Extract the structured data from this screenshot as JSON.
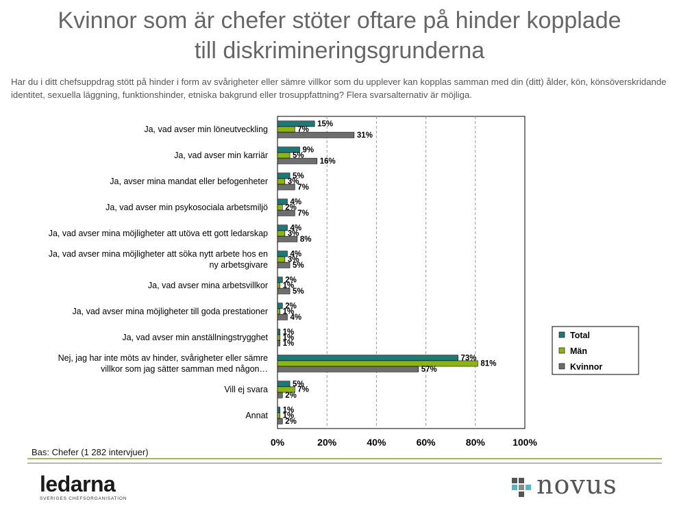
{
  "title": {
    "line1": "Kvinnor som är chefer stöter oftare på hinder kopplade",
    "line2": "till diskrimineringsgrunderna"
  },
  "subtitle": "Har du i ditt chefsuppdrag stött på hinder i form av svårigheter eller sämre villkor som du upplever kan kopplas samman med din (ditt) ålder, kön, könsöverskridande identitet, sexuella läggning, funktionshinder, etniska bakgrund eller trosuppfattning? Flera svarsalternativ är möjliga.",
  "footer": {
    "base": "Bas: Chefer (1 282 intervjuer)",
    "logo_left": "ledarna",
    "logo_left_tagline": "SVERIGES CHEFSORGANISATION",
    "logo_right": "novus"
  },
  "colors": {
    "total": "#1b7a78",
    "man": "#8cb412",
    "kvinnor": "#6e6e6e",
    "logo_sq1": "#555555",
    "logo_sq2": "#55b6c2",
    "logo_sq3": "#8a8a8a"
  },
  "chart_data": {
    "type": "bar",
    "orientation": "horizontal",
    "categories": [
      "Ja, vad avser min löneutveckling",
      "Ja, vad avser min karriär",
      "Ja, avser mina mandat eller befogenheter",
      "Ja, vad avser min psykosociala arbetsmiljö",
      "Ja, vad avser mina möjligheter att utöva ett gott ledarskap",
      "Ja, vad avser mina möjligheter att söka nytt arbete hos en ny arbetsgivare",
      "Ja, vad avser mina arbetsvillkor",
      "Ja, vad avser mina möjligheter till goda prestationer",
      "Ja, vad avser min anställningstrygghet",
      "Nej, jag har inte möts av hinder, svårigheter eller sämre villkor som jag sätter samman med någon…",
      "Vill ej svara",
      "Annat"
    ],
    "category_lines": [
      [
        "Ja, vad avser min löneutveckling"
      ],
      [
        "Ja, vad avser min karriär"
      ],
      [
        "Ja, avser mina mandat eller befogenheter"
      ],
      [
        "Ja, vad avser min psykosociala arbetsmiljö"
      ],
      [
        "Ja, vad avser mina möjligheter att utöva ett gott ledarskap"
      ],
      [
        "Ja, vad avser mina möjligheter att söka nytt arbete hos en",
        "ny arbetsgivare"
      ],
      [
        "Ja, vad avser mina arbetsvillkor"
      ],
      [
        "Ja, vad avser mina möjligheter till goda prestationer"
      ],
      [
        "Ja, vad avser min anställningstrygghet"
      ],
      [
        "Nej, jag har inte möts av hinder, svårigheter eller sämre",
        "villkor som jag sätter samman med någon…"
      ],
      [
        "Vill ej svara"
      ],
      [
        "Annat"
      ]
    ],
    "series": [
      {
        "name": "Total",
        "color": "#1b7a78",
        "values": [
          15,
          9,
          5,
          4,
          4,
          4,
          2,
          2,
          1,
          73,
          5,
          1
        ]
      },
      {
        "name": "Män",
        "color": "#8cb412",
        "values": [
          7,
          5,
          3,
          2,
          3,
          3,
          1,
          1,
          1,
          81,
          7,
          1
        ]
      },
      {
        "name": "Kvinnor",
        "color": "#6e6e6e",
        "values": [
          31,
          16,
          7,
          7,
          8,
          5,
          5,
          4,
          1,
          57,
          2,
          2
        ]
      }
    ],
    "xlim": [
      0,
      100
    ],
    "xticks": [
      "0%",
      "20%",
      "40%",
      "60%",
      "80%",
      "100%"
    ],
    "value_suffix": "%",
    "grid": true,
    "legend_position": "right"
  }
}
